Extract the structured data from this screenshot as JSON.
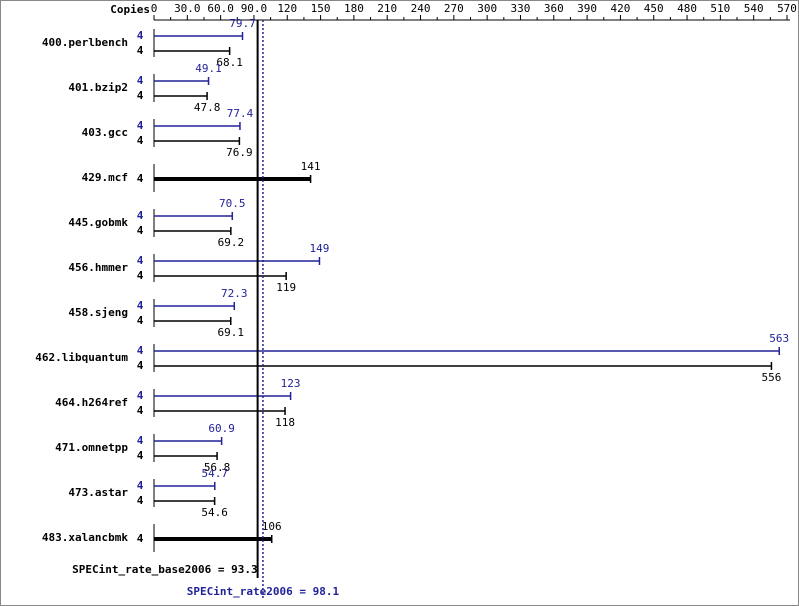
{
  "chart_data": {
    "type": "bar",
    "orientation": "horizontal",
    "axis_label": "Copies",
    "categories": [
      "400.perlbench",
      "401.bzip2",
      "403.gcc",
      "429.mcf",
      "445.gobmk",
      "456.hmmer",
      "458.sjeng",
      "462.libquantum",
      "464.h264ref",
      "471.omnetpp",
      "473.astar",
      "483.xalancbmk"
    ],
    "series": [
      {
        "color": "#222299",
        "copies": [
          4,
          4,
          4,
          null,
          4,
          4,
          4,
          4,
          4,
          4,
          4,
          null
        ],
        "values": [
          79.7,
          49.1,
          77.4,
          null,
          70.5,
          149,
          72.3,
          563,
          123,
          60.9,
          54.7,
          null
        ]
      },
      {
        "color": "#000000",
        "copies": [
          4,
          4,
          4,
          4,
          4,
          4,
          4,
          4,
          4,
          4,
          4,
          4
        ],
        "values": [
          68.1,
          47.8,
          76.9,
          141,
          69.2,
          119,
          69.1,
          556,
          118,
          56.8,
          54.6,
          106
        ]
      }
    ],
    "xlim": [
      0,
      570
    ],
    "xticks": [
      0,
      {
        "value": 30,
        "label": "30.0"
      },
      {
        "value": 60,
        "label": "60.0"
      },
      {
        "value": 90,
        "label": "90.0"
      },
      120,
      150,
      180,
      210,
      240,
      270,
      300,
      330,
      360,
      390,
      420,
      450,
      480,
      510,
      540,
      570
    ],
    "summary": [
      {
        "label": "SPECint_rate_base2006 = 93.3",
        "value": 93.3,
        "color": "#000000",
        "dashed": false
      },
      {
        "label": "SPECint_rate2006 = 98.1",
        "value": 98.1,
        "color": "#222299",
        "dashed": true
      }
    ]
  }
}
